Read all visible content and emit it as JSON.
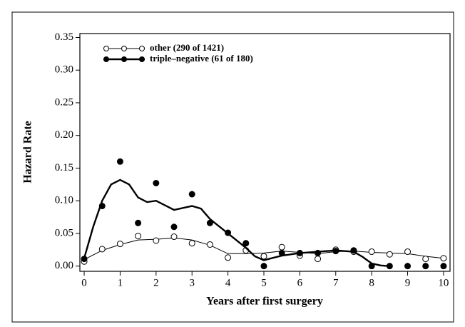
{
  "chart_data": {
    "type": "scatter-smooth",
    "xlabel": "Years after first surgery",
    "ylabel": "Hazard Rate",
    "xlim": [
      -0.12,
      10.18
    ],
    "ylim": [
      -0.008,
      0.356
    ],
    "xticks": [
      0,
      1,
      2,
      3,
      4,
      5,
      6,
      7,
      8,
      9,
      10
    ],
    "yticks": [
      {
        "value": 0,
        "label": "0.00"
      },
      {
        "value": 0.05,
        "label": "0.05"
      },
      {
        "value": 0.1,
        "label": "0.10"
      },
      {
        "value": 0.15,
        "label": "0.15"
      },
      {
        "value": 0.2,
        "label": "0.20"
      },
      {
        "value": 0.25,
        "label": "0.25"
      },
      {
        "value": 0.3,
        "label": "0.30"
      },
      {
        "value": 0.35,
        "label": "0.35"
      }
    ],
    "series": [
      {
        "name": "other (290 of 1421)",
        "color": "#000000",
        "marker": "open",
        "line_width": 1,
        "points_x": [
          0,
          0.5,
          1,
          1.5,
          2,
          2.5,
          3,
          3.5,
          4,
          4.5,
          5,
          5.5,
          6,
          6.5,
          7,
          7.5,
          8,
          8.5,
          9,
          9.5,
          10
        ],
        "points": [
          0.007,
          0.026,
          0.034,
          0.046,
          0.039,
          0.045,
          0.035,
          0.033,
          0.013,
          0.024,
          0.015,
          0.029,
          0.016,
          0.011,
          0.025,
          0.022,
          0.022,
          0.018,
          0.022,
          0.011,
          0.012
        ],
        "curve_x": [
          0,
          0.5,
          1,
          1.5,
          2,
          2.5,
          3,
          3.5,
          4,
          4.5,
          5,
          5.5,
          6,
          6.5,
          7,
          7.5,
          8,
          8.5,
          9,
          9.5,
          10
        ],
        "curve": [
          0.01,
          0.024,
          0.033,
          0.04,
          0.041,
          0.043,
          0.04,
          0.032,
          0.019,
          0.019,
          0.02,
          0.023,
          0.021,
          0.019,
          0.022,
          0.023,
          0.021,
          0.02,
          0.019,
          0.015,
          0.012
        ]
      },
      {
        "name": "triple–negative (61 of 180)",
        "color": "#000000",
        "marker": "filled",
        "line_width": 2.4,
        "points_x": [
          0,
          0.5,
          1,
          1.5,
          2,
          2.5,
          3,
          3.5,
          4,
          4.5,
          5,
          5.5,
          6,
          6.5,
          7,
          7.5,
          8,
          8.5,
          9,
          9.5,
          10
        ],
        "points": [
          0.011,
          0.092,
          0.16,
          0.066,
          0.127,
          0.06,
          0.11,
          0.066,
          0.051,
          0.035,
          0,
          0.02,
          0.02,
          0.02,
          0.023,
          0.024,
          0,
          0,
          0,
          0,
          0
        ],
        "curve_x": [
          0,
          0.25,
          0.5,
          0.75,
          1,
          1.25,
          1.5,
          1.75,
          2,
          2.5,
          3,
          3.25,
          3.5,
          4,
          4.5,
          4.75,
          5,
          5.5,
          6,
          6.5,
          7,
          7.5,
          7.75,
          8,
          8.25,
          8.5
        ],
        "curve": [
          0.012,
          0.06,
          0.1,
          0.125,
          0.132,
          0.125,
          0.105,
          0.098,
          0.1,
          0.086,
          0.092,
          0.088,
          0.072,
          0.05,
          0.028,
          0.015,
          0.009,
          0.016,
          0.02,
          0.022,
          0.024,
          0.022,
          0.014,
          0.004,
          0.001,
          0
        ]
      }
    ]
  }
}
